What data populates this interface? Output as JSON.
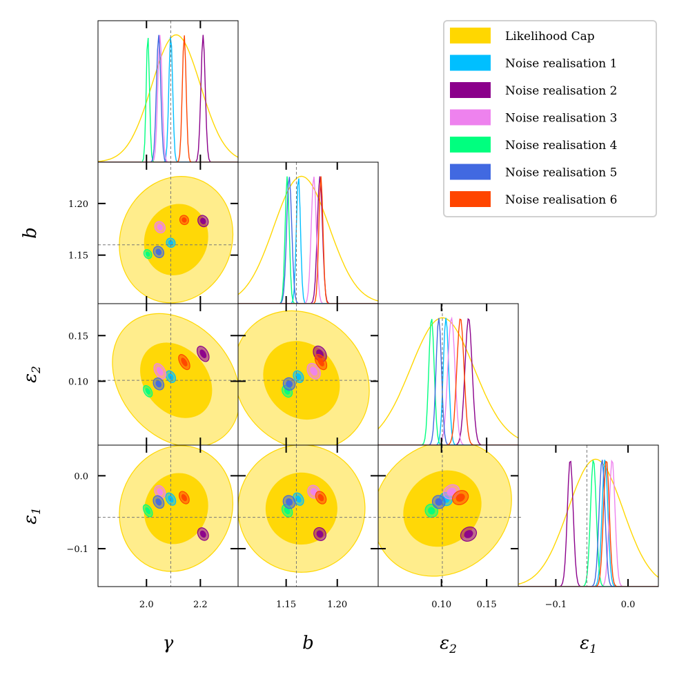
{
  "chart_data": {
    "type": "corner",
    "title": "",
    "params": [
      {
        "key": "gamma",
        "label": "γ",
        "sub": "",
        "range": [
          1.82,
          2.34
        ],
        "truth": 2.09,
        "ticks": [
          2.0,
          2.2
        ],
        "tick_labels": [
          "2.0",
          "2.2"
        ]
      },
      {
        "key": "b",
        "label": "b",
        "sub": "",
        "range": [
          1.103,
          1.24
        ],
        "truth": 1.16,
        "ticks": [
          1.15,
          1.2
        ],
        "tick_labels": [
          "1.15",
          "1.20"
        ]
      },
      {
        "key": "eps2",
        "label": "ε",
        "sub": "2",
        "range": [
          0.03,
          0.185
        ],
        "truth": 0.101,
        "ticks": [
          0.1,
          0.15
        ],
        "tick_labels": [
          "0.10",
          "0.15"
        ]
      },
      {
        "key": "eps1",
        "label": "ε",
        "sub": "1",
        "range": [
          -0.152,
          0.042
        ],
        "truth": -0.057,
        "ticks": [
          -0.1,
          0.0
        ],
        "tick_labels": [
          "−0.1",
          "0.0"
        ]
      }
    ],
    "legend": {
      "placement": "top-right",
      "entries": [
        {
          "label": "Likelihood Cap",
          "color": "#FFD700"
        },
        {
          "label": "Noise realisation 1",
          "color": "#00BFFF"
        },
        {
          "label": "Noise realisation 2",
          "color": "#8B008B"
        },
        {
          "label": "Noise realisation 3",
          "color": "#EE82EE"
        },
        {
          "label": "Noise realisation 4",
          "color": "#00FF7F"
        },
        {
          "label": "Noise realisation 5",
          "color": "#4169E1"
        },
        {
          "label": "Noise realisation 6",
          "color": "#FF4500"
        }
      ]
    },
    "series": [
      {
        "name": "Likelihood Cap",
        "color": "#FFD700",
        "mean": {
          "gamma": 2.11,
          "b": 1.165,
          "eps2": 0.101,
          "eps1": -0.045
        },
        "sigma": {
          "gamma": 0.09,
          "b": 0.027,
          "eps2": 0.035,
          "eps1": 0.038
        }
      },
      {
        "name": "Noise realisation 1",
        "color": "#00BFFF",
        "mean": {
          "gamma": 2.09,
          "b": 1.162,
          "eps2": 0.105,
          "eps1": -0.032
        },
        "sigma": {
          "gamma": 0.007,
          "b": 0.002,
          "eps2": 0.003,
          "eps1": 0.004
        }
      },
      {
        "name": "Noise realisation 2",
        "color": "#8B008B",
        "mean": {
          "gamma": 2.21,
          "b": 1.183,
          "eps2": 0.13,
          "eps1": -0.08
        },
        "sigma": {
          "gamma": 0.008,
          "b": 0.0025,
          "eps2": 0.004,
          "eps1": 0.004
        }
      },
      {
        "name": "Noise realisation 3",
        "color": "#EE82EE",
        "mean": {
          "gamma": 2.05,
          "b": 1.177,
          "eps2": 0.111,
          "eps1": -0.022
        },
        "sigma": {
          "gamma": 0.008,
          "b": 0.0025,
          "eps2": 0.004,
          "eps1": 0.004
        }
      },
      {
        "name": "Noise realisation 4",
        "color": "#00FF7F",
        "mean": {
          "gamma": 2.005,
          "b": 1.151,
          "eps2": 0.089,
          "eps1": -0.048
        },
        "sigma": {
          "gamma": 0.006,
          "b": 0.002,
          "eps2": 0.003,
          "eps1": 0.004
        }
      },
      {
        "name": "Noise realisation 5",
        "color": "#4169E1",
        "mean": {
          "gamma": 2.045,
          "b": 1.153,
          "eps2": 0.097,
          "eps1": -0.036
        },
        "sigma": {
          "gamma": 0.008,
          "b": 0.0025,
          "eps2": 0.003,
          "eps1": 0.004
        }
      },
      {
        "name": "Noise realisation 6",
        "color": "#FF4500",
        "mean": {
          "gamma": 2.14,
          "b": 1.184,
          "eps2": 0.121,
          "eps1": -0.03
        },
        "sigma": {
          "gamma": 0.007,
          "b": 0.002,
          "eps2": 0.004,
          "eps1": 0.004
        }
      }
    ]
  }
}
